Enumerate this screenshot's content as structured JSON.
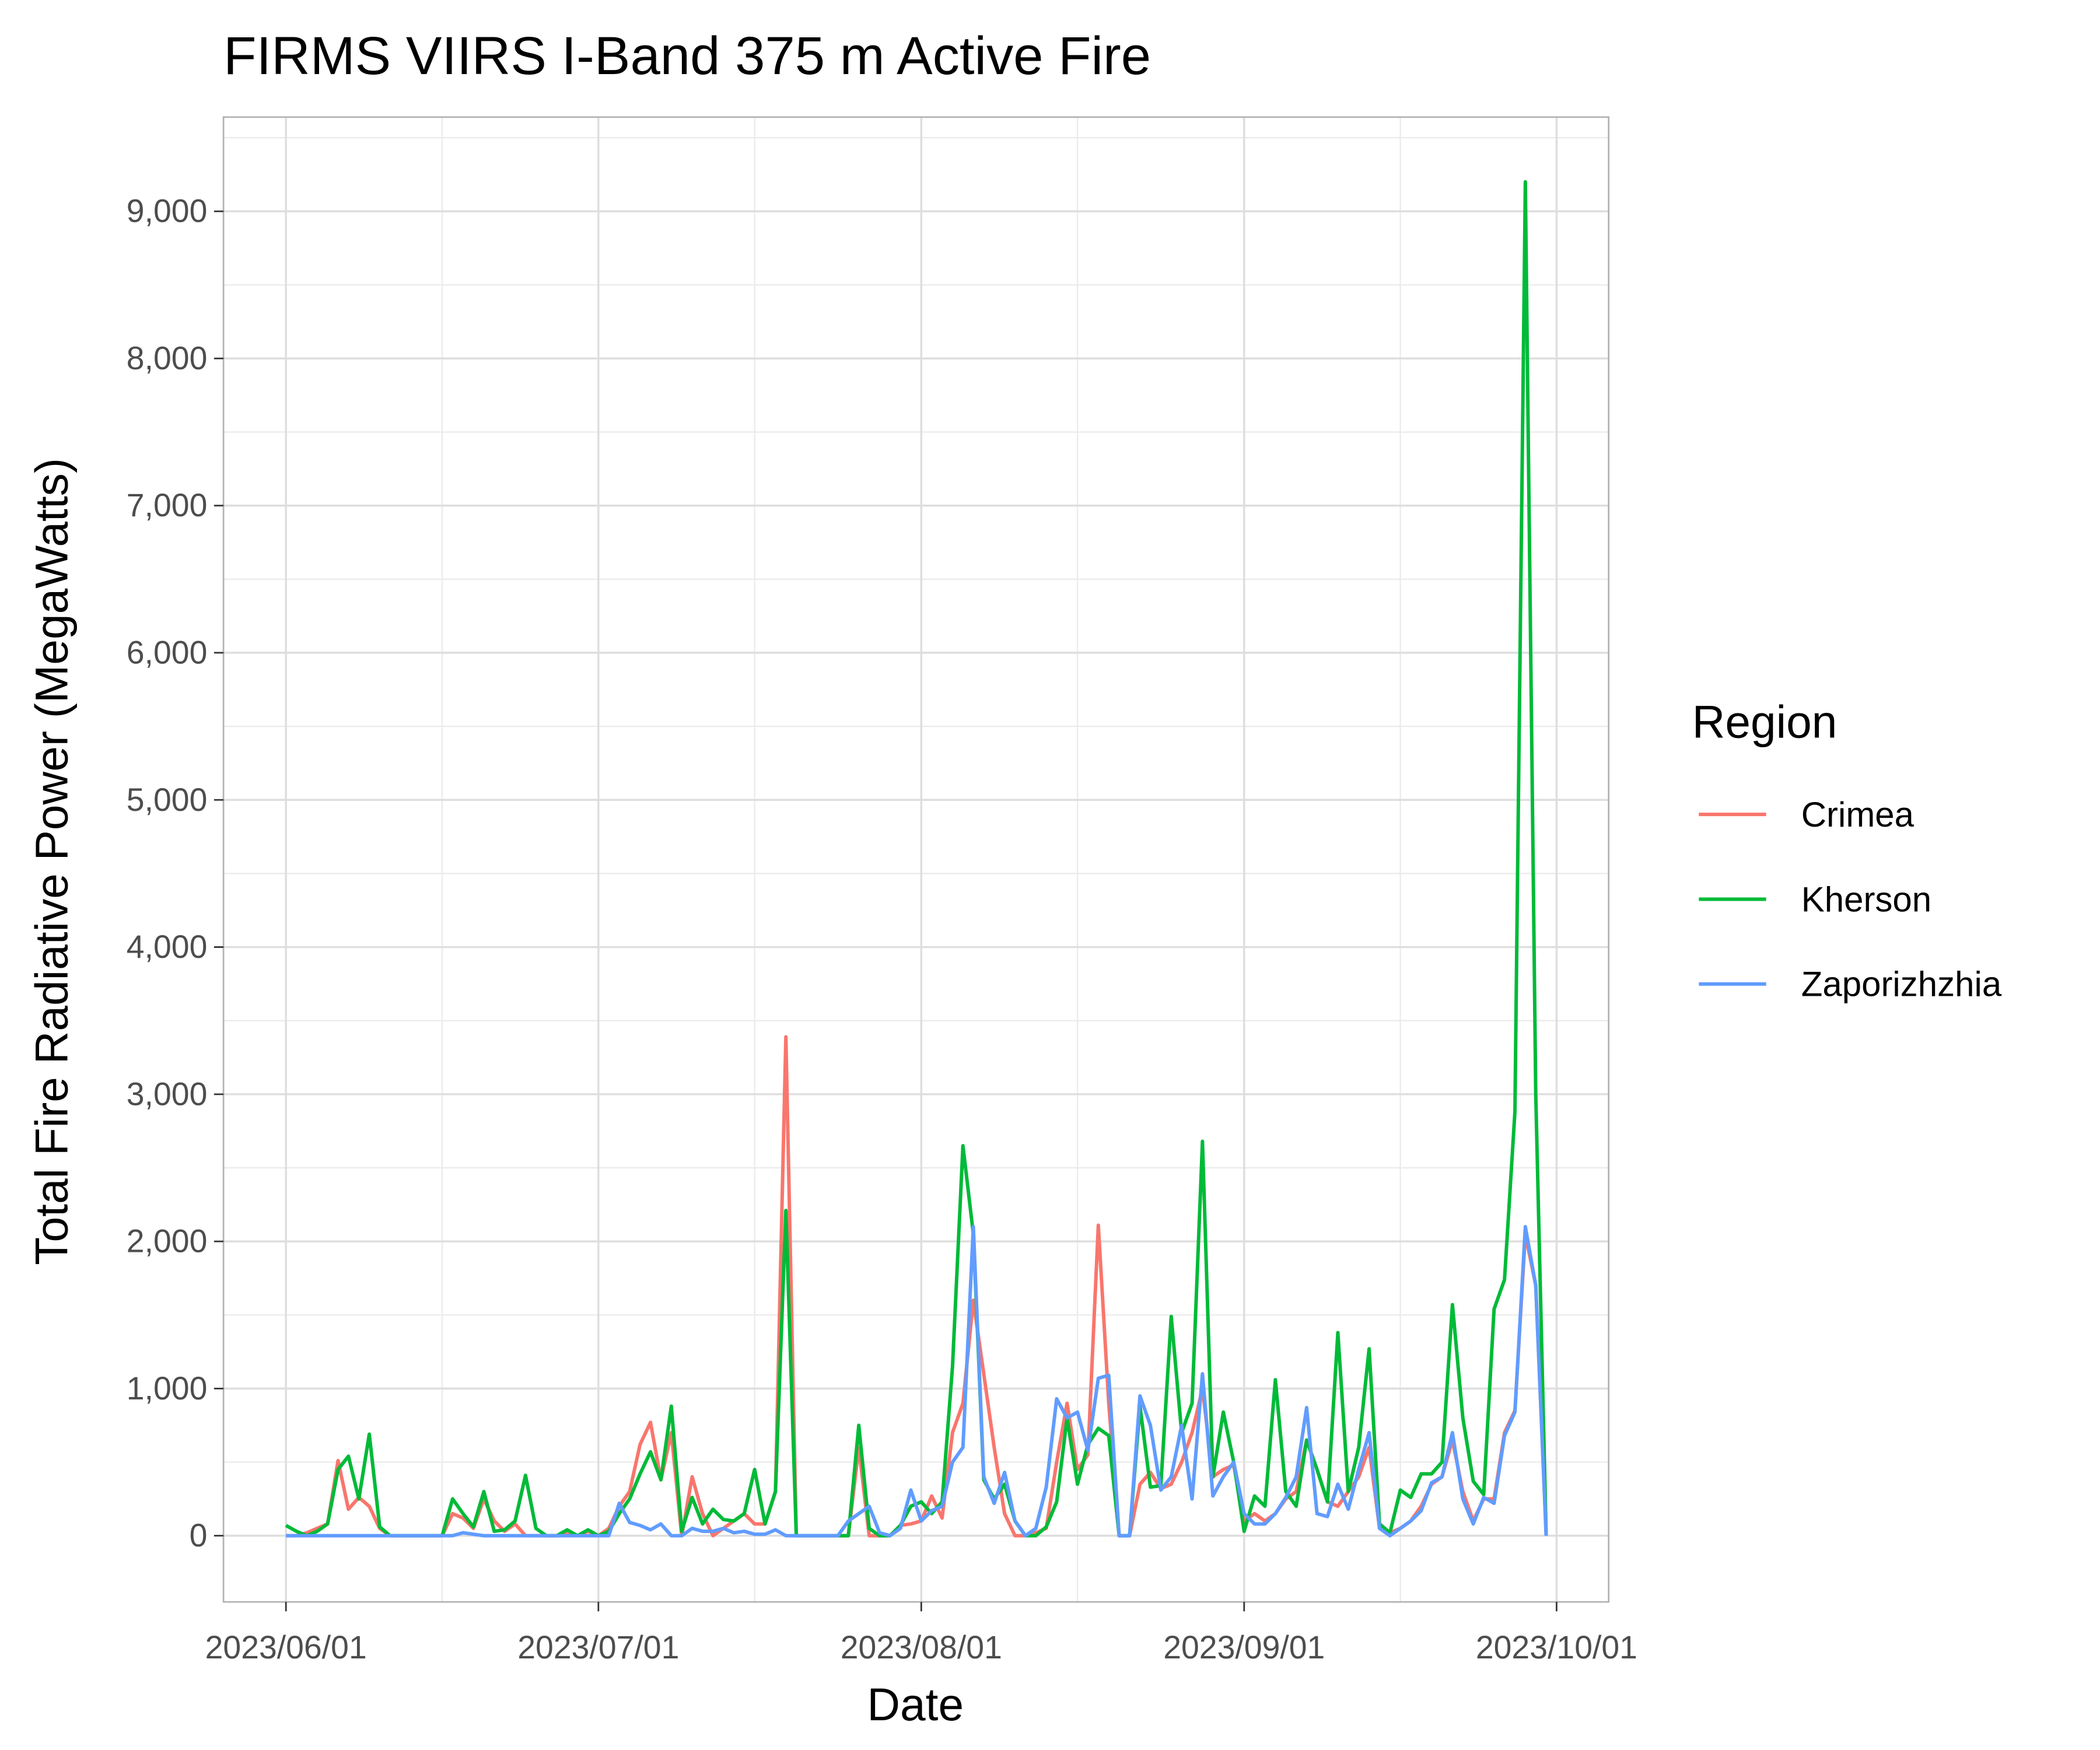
{
  "chart_data": {
    "type": "line",
    "title": "FIRMS VIIRS I-Band 375 m Active Fire",
    "x_label": "Date",
    "y_label": "Total Fire Radiative Power (MegaWatts)",
    "legend_title": "Region",
    "legend_position": "right",
    "grid": true,
    "x": [
      "2023-06-01",
      "2023-06-02",
      "2023-06-03",
      "2023-06-04",
      "2023-06-05",
      "2023-06-06",
      "2023-06-07",
      "2023-06-08",
      "2023-06-09",
      "2023-06-10",
      "2023-06-11",
      "2023-06-12",
      "2023-06-13",
      "2023-06-14",
      "2023-06-15",
      "2023-06-16",
      "2023-06-17",
      "2023-06-18",
      "2023-06-19",
      "2023-06-20",
      "2023-06-21",
      "2023-06-22",
      "2023-06-23",
      "2023-06-24",
      "2023-06-25",
      "2023-06-26",
      "2023-06-27",
      "2023-06-28",
      "2023-06-29",
      "2023-06-30",
      "2023-07-01",
      "2023-07-02",
      "2023-07-03",
      "2023-07-04",
      "2023-07-05",
      "2023-07-06",
      "2023-07-07",
      "2023-07-08",
      "2023-07-09",
      "2023-07-10",
      "2023-07-11",
      "2023-07-12",
      "2023-07-13",
      "2023-07-14",
      "2023-07-15",
      "2023-07-16",
      "2023-07-17",
      "2023-07-18",
      "2023-07-19",
      "2023-07-20",
      "2023-07-21",
      "2023-07-22",
      "2023-07-23",
      "2023-07-24",
      "2023-07-25",
      "2023-07-26",
      "2023-07-27",
      "2023-07-28",
      "2023-07-29",
      "2023-07-30",
      "2023-07-31",
      "2023-08-01",
      "2023-08-02",
      "2023-08-03",
      "2023-08-04",
      "2023-08-05",
      "2023-08-06",
      "2023-08-07",
      "2023-08-08",
      "2023-08-09",
      "2023-08-10",
      "2023-08-11",
      "2023-08-12",
      "2023-08-13",
      "2023-08-14",
      "2023-08-15",
      "2023-08-16",
      "2023-08-17",
      "2023-08-18",
      "2023-08-19",
      "2023-08-20",
      "2023-08-21",
      "2023-08-22",
      "2023-08-23",
      "2023-08-24",
      "2023-08-25",
      "2023-08-26",
      "2023-08-27",
      "2023-08-28",
      "2023-08-29",
      "2023-08-30",
      "2023-08-31",
      "2023-09-01",
      "2023-09-02",
      "2023-09-03",
      "2023-09-04",
      "2023-09-05",
      "2023-09-06",
      "2023-09-07",
      "2023-09-08",
      "2023-09-09",
      "2023-09-10",
      "2023-09-11",
      "2023-09-12",
      "2023-09-13",
      "2023-09-14",
      "2023-09-15",
      "2023-09-16",
      "2023-09-17",
      "2023-09-18",
      "2023-09-19",
      "2023-09-20",
      "2023-09-21",
      "2023-09-22",
      "2023-09-23",
      "2023-09-24",
      "2023-09-25",
      "2023-09-26",
      "2023-09-27",
      "2023-09-28",
      "2023-09-29",
      "2023-09-30"
    ],
    "series": [
      {
        "name": "Crimea",
        "color": "#F8766D",
        "values": [
          0,
          0,
          20,
          50,
          80,
          510,
          180,
          260,
          200,
          50,
          0,
          0,
          0,
          0,
          0,
          0,
          150,
          120,
          50,
          250,
          100,
          30,
          80,
          0,
          0,
          0,
          0,
          20,
          0,
          30,
          0,
          50,
          200,
          300,
          620,
          770,
          380,
          700,
          0,
          400,
          150,
          0,
          50,
          100,
          150,
          80,
          80,
          300,
          3390,
          0,
          0,
          0,
          0,
          0,
          0,
          600,
          0,
          0,
          0,
          70,
          80,
          100,
          270,
          120,
          700,
          900,
          1600,
          1100,
          600,
          150,
          0,
          0,
          20,
          50,
          500,
          900,
          450,
          550,
          2110,
          900,
          0,
          0,
          350,
          430,
          320,
          350,
          500,
          700,
          1000,
          400,
          450,
          480,
          100,
          150,
          100,
          150,
          250,
          300,
          650,
          450,
          230,
          200,
          300,
          400,
          600,
          50,
          20,
          50,
          100,
          200,
          350,
          400,
          650,
          300,
          100,
          250,
          250,
          700,
          850,
          2050,
          1700,
          0
        ]
      },
      {
        "name": "Kherson",
        "color": "#00BA38",
        "values": [
          70,
          30,
          0,
          30,
          80,
          450,
          540,
          250,
          690,
          60,
          0,
          0,
          0,
          0,
          0,
          0,
          250,
          150,
          60,
          300,
          30,
          40,
          100,
          410,
          50,
          0,
          0,
          40,
          0,
          40,
          0,
          30,
          150,
          250,
          420,
          570,
          380,
          880,
          30,
          260,
          80,
          180,
          110,
          100,
          150,
          450,
          80,
          300,
          2210,
          0,
          0,
          0,
          0,
          0,
          0,
          750,
          50,
          0,
          0,
          70,
          200,
          230,
          150,
          230,
          1150,
          2650,
          2050,
          380,
          250,
          350,
          100,
          0,
          0,
          60,
          230,
          800,
          350,
          620,
          730,
          680,
          0,
          0,
          880,
          330,
          340,
          1490,
          700,
          900,
          2680,
          400,
          840,
          500,
          30,
          270,
          200,
          1060,
          300,
          200,
          650,
          450,
          230,
          1380,
          300,
          600,
          1270,
          80,
          20,
          310,
          260,
          420,
          420,
          500,
          1570,
          800,
          370,
          280,
          1540,
          1740,
          2880,
          9200,
          3000,
          0
        ]
      },
      {
        "name": "Zaporizhzhia",
        "color": "#619CFF",
        "values": [
          0,
          0,
          0,
          0,
          0,
          0,
          0,
          0,
          0,
          0,
          0,
          0,
          0,
          0,
          0,
          0,
          0,
          20,
          10,
          0,
          0,
          0,
          0,
          0,
          0,
          0,
          0,
          0,
          0,
          0,
          0,
          0,
          220,
          90,
          70,
          40,
          80,
          0,
          0,
          50,
          30,
          30,
          50,
          20,
          30,
          10,
          10,
          40,
          0,
          0,
          0,
          0,
          0,
          0,
          100,
          150,
          200,
          20,
          0,
          50,
          310,
          100,
          170,
          200,
          500,
          600,
          2100,
          400,
          220,
          430,
          100,
          0,
          50,
          330,
          930,
          800,
          840,
          580,
          1070,
          1090,
          0,
          0,
          950,
          750,
          310,
          400,
          750,
          250,
          1100,
          270,
          400,
          500,
          150,
          80,
          80,
          150,
          260,
          400,
          870,
          150,
          130,
          350,
          180,
          450,
          700,
          50,
          0,
          50,
          100,
          170,
          360,
          400,
          700,
          250,
          80,
          260,
          220,
          680,
          840,
          2100,
          1700,
          0
        ]
      }
    ],
    "xlim": [
      "2023-05-26",
      "2023-10-06"
    ],
    "xticks": [
      {
        "value": "2023-06-01",
        "label": "2023/06/01"
      },
      {
        "value": "2023-07-01",
        "label": "2023/07/01"
      },
      {
        "value": "2023-08-01",
        "label": "2023/08/01"
      },
      {
        "value": "2023-09-01",
        "label": "2023/09/01"
      },
      {
        "value": "2023-10-01",
        "label": "2023/10/01"
      }
    ],
    "x_minor_ticks": [
      "2023-06-16",
      "2023-07-16",
      "2023-08-16",
      "2023-09-16"
    ],
    "ylim": [
      -450,
      9640
    ],
    "yticks": [
      0,
      {
        "value": 1000,
        "label": "1,000"
      },
      {
        "value": 2000,
        "label": "2,000"
      },
      {
        "value": 3000,
        "label": "3,000"
      },
      {
        "value": 4000,
        "label": "4,000"
      },
      {
        "value": 5000,
        "label": "5,000"
      },
      {
        "value": 6000,
        "label": "6,000"
      },
      {
        "value": 7000,
        "label": "7,000"
      },
      {
        "value": 8000,
        "label": "8,000"
      },
      {
        "value": 9000,
        "label": "9,000"
      }
    ],
    "y_minor_ticks": [
      500,
      1500,
      2500,
      3500,
      4500,
      5500,
      6500,
      7500,
      8500,
      9500
    ]
  }
}
